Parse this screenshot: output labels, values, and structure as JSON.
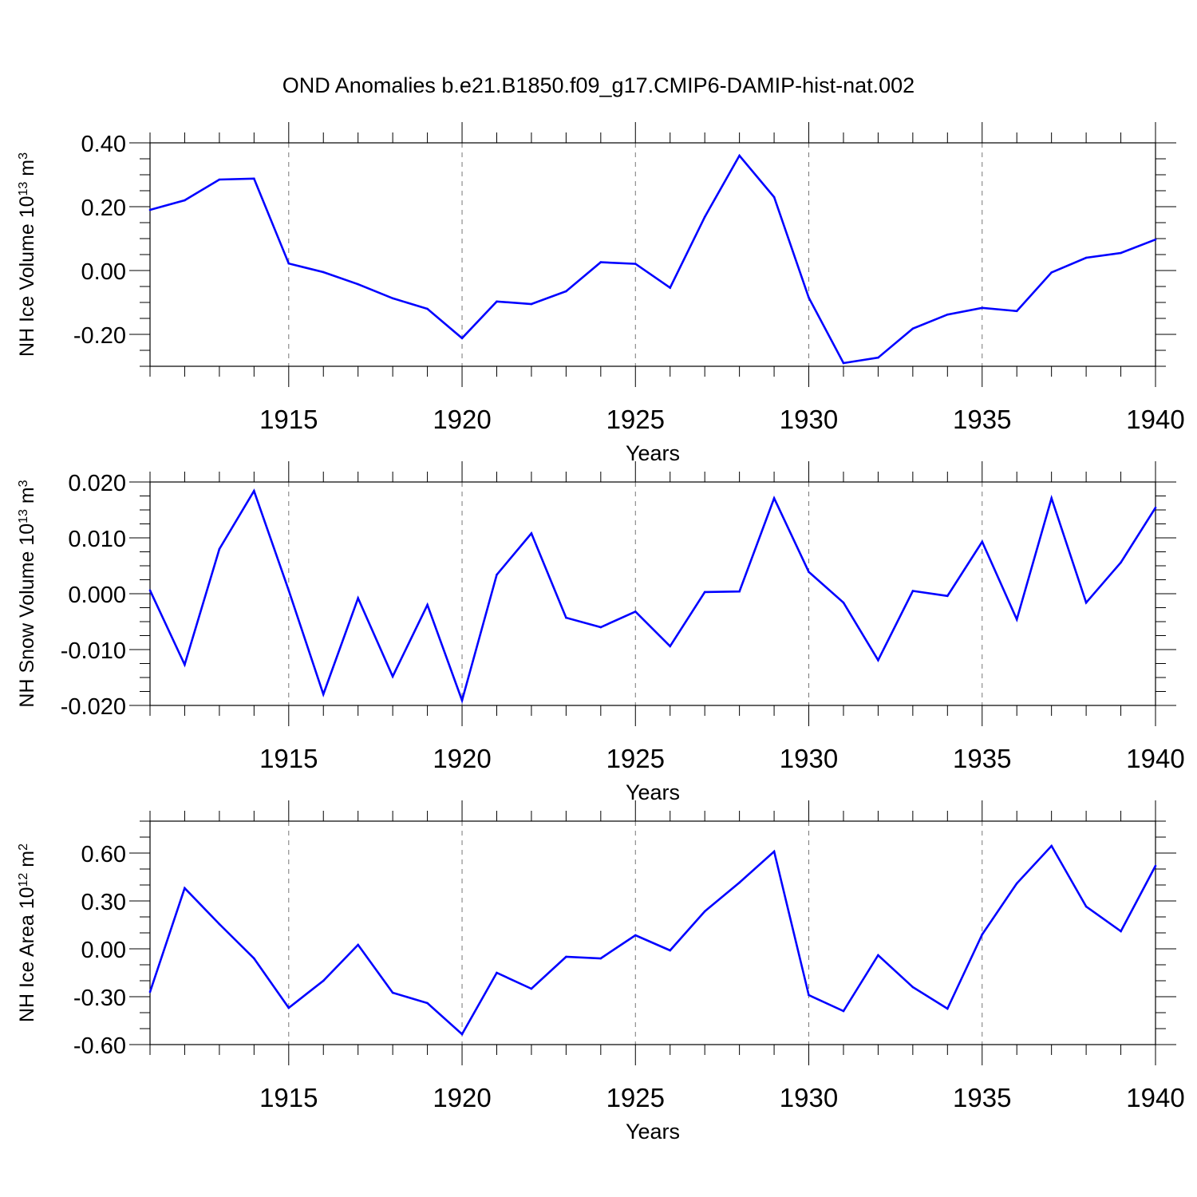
{
  "title": "OND Anomalies b.e21.B1850.f09_g17.CMIP6-DAMIP-hist-nat.002",
  "chart_data": [
    {
      "type": "line",
      "name": "ice-volume",
      "title": "OND Anomalies b.e21.B1850.f09_g17.CMIP6-DAMIP-hist-nat.002",
      "ylabel_main": "NH Ice Volume 10",
      "ylabel_exp": "13",
      "ylabel_unit": " m",
      "ylabel_unit_exp": "3",
      "xlabel": "Years",
      "xlim": [
        1911,
        1940
      ],
      "ylim": [
        -0.3,
        0.4
      ],
      "yticks": [
        -0.2,
        0.0,
        0.2,
        0.4
      ],
      "ytick_labels": [
        "-0.20",
        "0.00",
        "0.20",
        "0.40"
      ],
      "yminor_step": 0.05,
      "xticks": [
        1915,
        1920,
        1925,
        1930,
        1935,
        1940
      ],
      "xtick_labels": [
        "1915",
        "1920",
        "1925",
        "1930",
        "1935",
        "1940"
      ],
      "line_color": "#0000ff",
      "x": [
        1911,
        1912,
        1913,
        1914,
        1915,
        1916,
        1917,
        1918,
        1919,
        1920,
        1921,
        1922,
        1923,
        1924,
        1925,
        1926,
        1927,
        1928,
        1929,
        1930,
        1931,
        1932,
        1933,
        1934,
        1935,
        1936,
        1937,
        1938,
        1939,
        1940
      ],
      "values": [
        0.19,
        0.22,
        0.285,
        0.288,
        0.022,
        -0.005,
        -0.043,
        -0.087,
        -0.12,
        -0.212,
        -0.097,
        -0.105,
        -0.065,
        0.026,
        0.021,
        -0.054,
        0.168,
        0.36,
        0.23,
        -0.085,
        -0.29,
        -0.273,
        -0.182,
        -0.138,
        -0.117,
        -0.127,
        -0.006,
        0.04,
        0.055,
        0.097
      ]
    },
    {
      "type": "line",
      "name": "snow-volume",
      "ylabel_main": "NH Snow Volume 10",
      "ylabel_exp": "13",
      "ylabel_unit": " m",
      "ylabel_unit_exp": "3",
      "xlabel": "Years",
      "xlim": [
        1911,
        1940
      ],
      "ylim": [
        -0.02,
        0.02
      ],
      "yticks": [
        -0.02,
        -0.01,
        0.0,
        0.01,
        0.02
      ],
      "ytick_labels": [
        "-0.020",
        "-0.010",
        "0.000",
        "0.010",
        "0.020"
      ],
      "yminor_step": 0.0025,
      "xticks": [
        1915,
        1920,
        1925,
        1930,
        1935,
        1940
      ],
      "xtick_labels": [
        "1915",
        "1920",
        "1925",
        "1930",
        "1935",
        "1940"
      ],
      "line_color": "#0000ff",
      "x": [
        1911,
        1912,
        1913,
        1914,
        1915,
        1916,
        1917,
        1918,
        1919,
        1920,
        1921,
        1922,
        1923,
        1924,
        1925,
        1926,
        1927,
        1928,
        1929,
        1930,
        1931,
        1932,
        1933,
        1934,
        1935,
        1936,
        1937,
        1938,
        1939,
        1940
      ],
      "values": [
        0.0006,
        -0.0127,
        0.008,
        0.0184,
        0.0006,
        -0.018,
        -0.0008,
        -0.0148,
        -0.002,
        -0.0191,
        0.0034,
        0.0108,
        -0.0043,
        -0.006,
        -0.0032,
        -0.0094,
        0.0003,
        0.0004,
        0.0171,
        0.0039,
        -0.0016,
        -0.0119,
        0.0005,
        -0.0004,
        0.0093,
        -0.0046,
        0.0171,
        -0.0016,
        0.0056,
        0.0154
      ]
    },
    {
      "type": "line",
      "name": "ice-area",
      "ylabel_main": "NH Ice Area 10",
      "ylabel_exp": "12",
      "ylabel_unit": " m",
      "ylabel_unit_exp": "2",
      "xlabel": "Years",
      "xlim": [
        1911,
        1940
      ],
      "ylim": [
        -0.6,
        0.8
      ],
      "yticks": [
        -0.6,
        -0.3,
        0.0,
        0.3,
        0.6
      ],
      "ytick_labels": [
        "-0.60",
        "-0.30",
        "0.00",
        "0.30",
        "0.60"
      ],
      "yminor_step": 0.1,
      "xticks": [
        1915,
        1920,
        1925,
        1930,
        1935,
        1940
      ],
      "xtick_labels": [
        "1915",
        "1920",
        "1925",
        "1930",
        "1935",
        "1940"
      ],
      "line_color": "#0000ff",
      "x": [
        1911,
        1912,
        1913,
        1914,
        1915,
        1916,
        1917,
        1918,
        1919,
        1920,
        1921,
        1922,
        1923,
        1924,
        1925,
        1926,
        1927,
        1928,
        1929,
        1930,
        1931,
        1932,
        1933,
        1934,
        1935,
        1936,
        1937,
        1938,
        1939,
        1940
      ],
      "values": [
        -0.27,
        0.38,
        0.155,
        -0.06,
        -0.37,
        -0.2,
        0.025,
        -0.275,
        -0.34,
        -0.535,
        -0.15,
        -0.25,
        -0.05,
        -0.06,
        0.085,
        -0.01,
        0.235,
        0.415,
        0.61,
        -0.29,
        -0.39,
        -0.04,
        -0.24,
        -0.375,
        0.09,
        0.41,
        0.645,
        0.265,
        0.11,
        0.52
      ]
    }
  ]
}
